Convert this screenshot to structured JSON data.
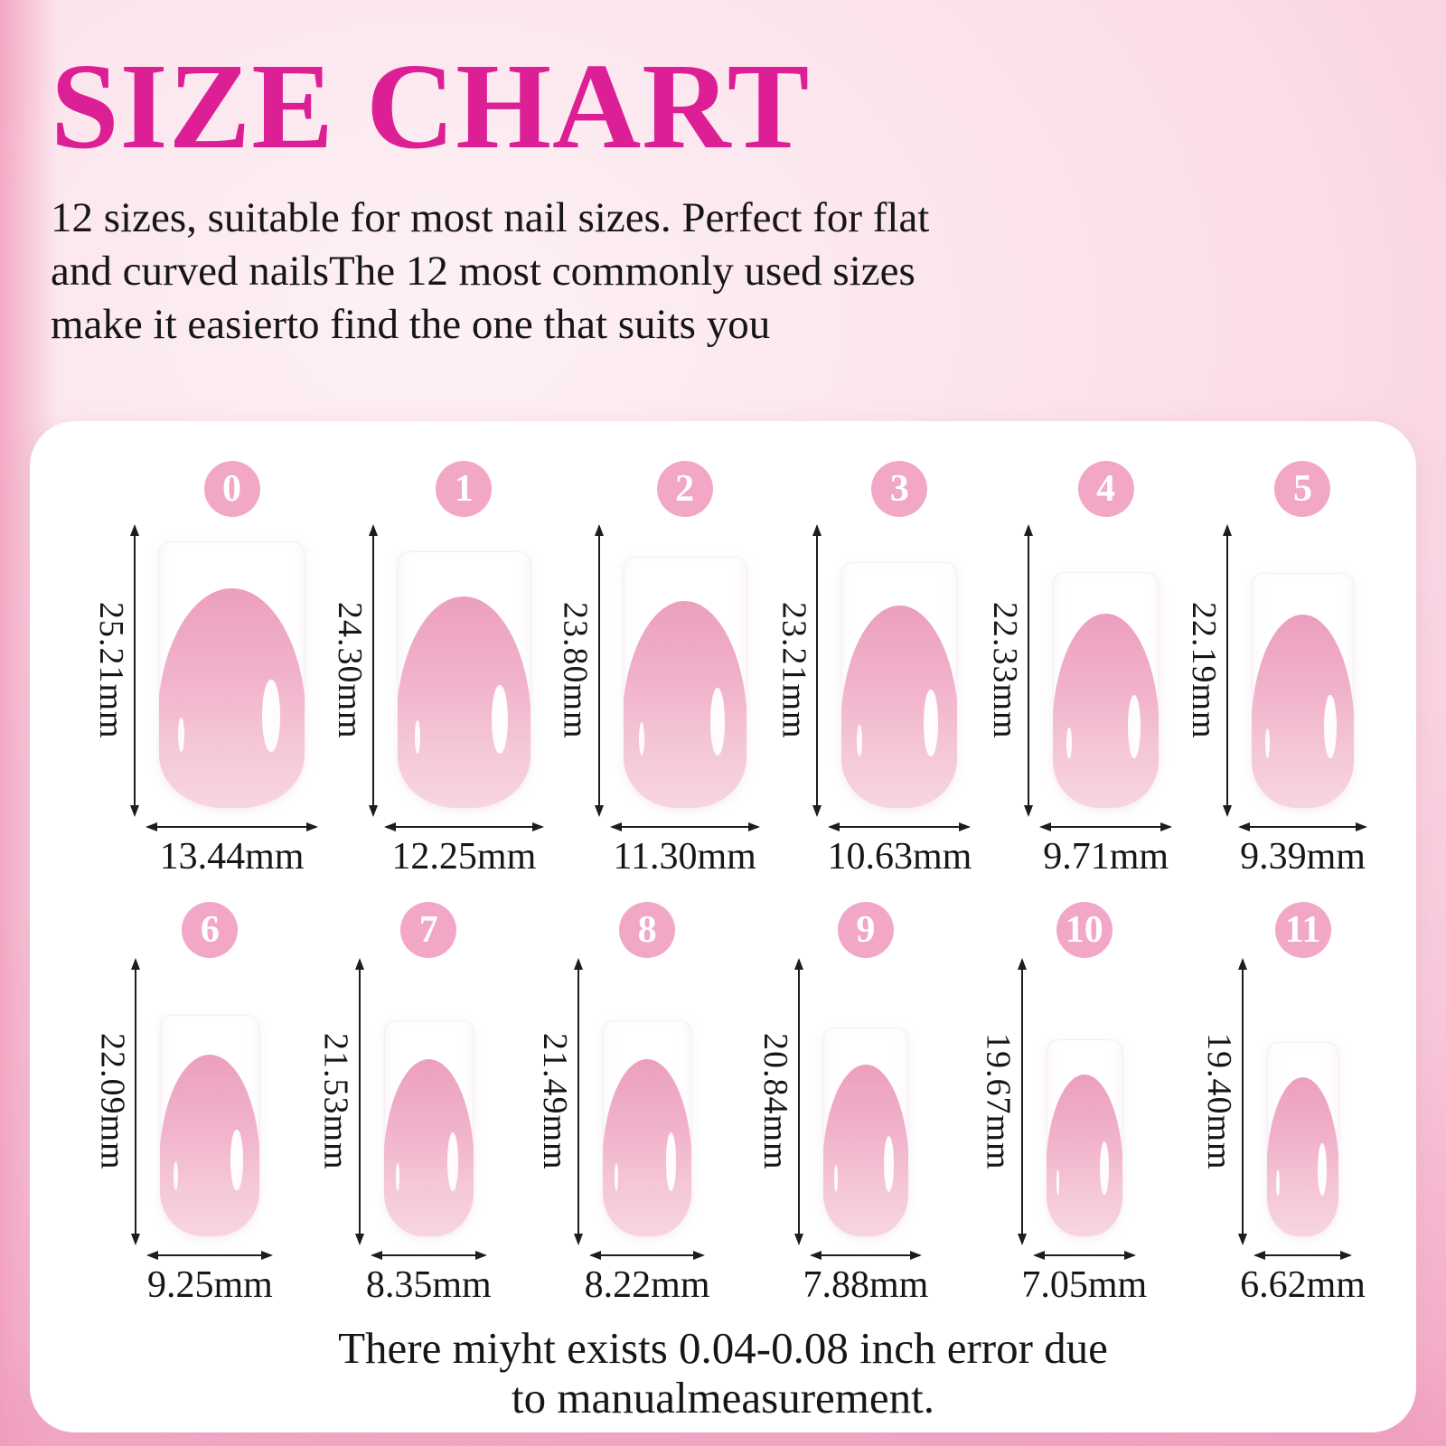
{
  "title": "SIZE CHART",
  "intro_lines": [
    "12 sizes, suitable for most nail sizes. Perfect for flat",
    "and curved nailsThe 12 most commonly used sizes",
    "make it easierto find the one that suits you"
  ],
  "rows": [
    {
      "items": [
        {
          "num": "0",
          "height_mm": 25.21,
          "width_mm": 13.44,
          "height_label": "25.21mm",
          "width_label": "13.44mm"
        },
        {
          "num": "1",
          "height_mm": 24.3,
          "width_mm": 12.25,
          "height_label": "24.30mm",
          "width_label": "12.25mm"
        },
        {
          "num": "2",
          "height_mm": 23.8,
          "width_mm": 11.3,
          "height_label": "23.80mm",
          "width_label": "11.30mm"
        },
        {
          "num": "3",
          "height_mm": 23.21,
          "width_mm": 10.63,
          "height_label": "23.21mm",
          "width_label": "10.63mm"
        },
        {
          "num": "4",
          "height_mm": 22.33,
          "width_mm": 9.71,
          "height_label": "22.33mm",
          "width_label": "9.71mm"
        },
        {
          "num": "5",
          "height_mm": 22.19,
          "width_mm": 9.39,
          "height_label": "22.19mm",
          "width_label": "9.39mm"
        }
      ]
    },
    {
      "items": [
        {
          "num": "6",
          "height_mm": 22.09,
          "width_mm": 9.25,
          "height_label": "22.09mm",
          "width_label": "9.25mm"
        },
        {
          "num": "7",
          "height_mm": 21.53,
          "width_mm": 8.35,
          "height_label": "21.53mm",
          "width_label": "8.35mm"
        },
        {
          "num": "8",
          "height_mm": 21.49,
          "width_mm": 8.22,
          "height_label": "21.49mm",
          "width_label": "8.22mm"
        },
        {
          "num": "9",
          "height_mm": 20.84,
          "width_mm": 7.88,
          "height_label": "20.84mm",
          "width_label": "7.88mm"
        },
        {
          "num": "10",
          "height_mm": 19.67,
          "width_mm": 7.05,
          "height_label": "19.67mm",
          "width_label": "7.05mm"
        },
        {
          "num": "11",
          "height_mm": 19.4,
          "width_mm": 6.62,
          "height_label": "19.40mm",
          "width_label": "6.62mm"
        }
      ]
    }
  ],
  "disclaimer_lines": [
    "There miyht exists 0.04-0.08 inch error due",
    "to manualmeasurement."
  ],
  "colors": {
    "title": "#dd1f96",
    "badge_pink": "#f2a7c6",
    "nail_pink": "#f1b4cc",
    "nail_pink_deep": "#ec9fbe",
    "nail_pink_light": "#f7d6e1",
    "card_bg": "#ffffff",
    "text": "#161616",
    "arrow": "#1d1d1d",
    "bg_pink": "#f5b2cc",
    "bg_light": "#fdf1f5"
  },
  "chart_data": {
    "type": "table",
    "title": "SIZE CHART",
    "columns": [
      "size",
      "length_mm",
      "width_mm"
    ],
    "rows": [
      [
        0,
        25.21,
        13.44
      ],
      [
        1,
        24.3,
        12.25
      ],
      [
        2,
        23.8,
        11.3
      ],
      [
        3,
        23.21,
        10.63
      ],
      [
        4,
        22.33,
        9.71
      ],
      [
        5,
        22.19,
        9.39
      ],
      [
        6,
        22.09,
        9.25
      ],
      [
        7,
        21.53,
        8.35
      ],
      [
        8,
        21.49,
        8.22
      ],
      [
        9,
        20.84,
        7.88
      ],
      [
        10,
        19.67,
        7.05
      ],
      [
        11,
        19.4,
        6.62
      ]
    ]
  }
}
